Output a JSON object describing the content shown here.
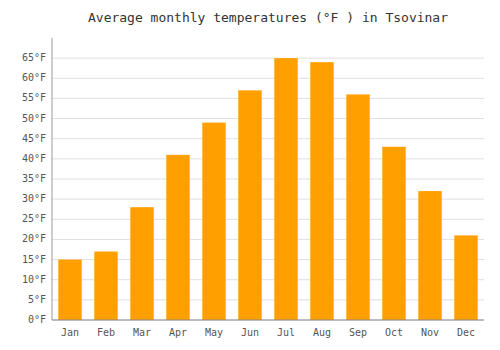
{
  "chart_data": {
    "type": "bar",
    "title": "Average monthly temperatures (°F ) in Tsovinar",
    "categories": [
      "Jan",
      "Feb",
      "Mar",
      "Apr",
      "May",
      "Jun",
      "Jul",
      "Aug",
      "Sep",
      "Oct",
      "Nov",
      "Dec"
    ],
    "values": [
      15,
      17,
      28,
      41,
      49,
      57,
      65,
      64,
      56,
      43,
      32,
      21
    ],
    "color": "#FFA000",
    "ylim": [
      0,
      70
    ],
    "yticks": [
      {
        "value": 0,
        "label": "0°F"
      },
      {
        "value": 5,
        "label": "5°F"
      },
      {
        "value": 10,
        "label": "10°F"
      },
      {
        "value": 15,
        "label": "15°F"
      },
      {
        "value": 20,
        "label": "20°F"
      },
      {
        "value": 25,
        "label": "25°F"
      },
      {
        "value": 30,
        "label": "30°F"
      },
      {
        "value": 35,
        "label": "35°F"
      },
      {
        "value": 40,
        "label": "40°F"
      },
      {
        "value": 45,
        "label": "45°F"
      },
      {
        "value": 50,
        "label": "50°F"
      },
      {
        "value": 55,
        "label": "55°F"
      },
      {
        "value": 60,
        "label": "60°F"
      },
      {
        "value": 65,
        "label": "65°F"
      }
    ],
    "grid": true
  }
}
